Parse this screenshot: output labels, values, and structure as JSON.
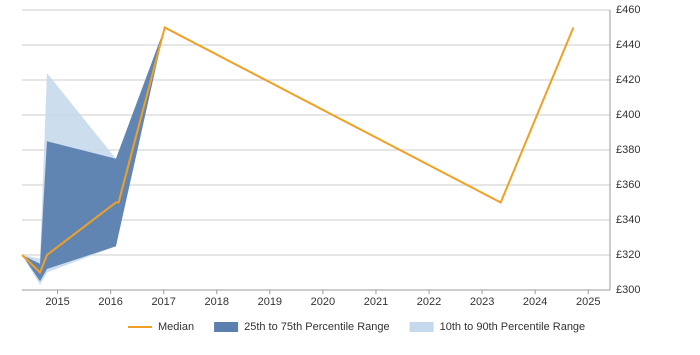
{
  "chart_data": {
    "type": "line-range",
    "xlim": [
      2014.33,
      2025.41
    ],
    "xticks": [
      2015,
      2016,
      2017,
      2018,
      2019,
      2020,
      2021,
      2022,
      2023,
      2024,
      2025
    ],
    "ylim": [
      300,
      460
    ],
    "yticks": [
      {
        "value": 300,
        "label": "£300"
      },
      {
        "value": 320,
        "label": "£320"
      },
      {
        "value": 340,
        "label": "£340"
      },
      {
        "value": 360,
        "label": "£360"
      },
      {
        "value": 380,
        "label": "£380"
      },
      {
        "value": 400,
        "label": "£400"
      },
      {
        "value": 420,
        "label": "£420"
      },
      {
        "value": 440,
        "label": "£440"
      },
      {
        "value": 460,
        "label": "£460"
      }
    ],
    "grid": true,
    "ranges": [
      {
        "name": "10th to 90th Percentile Range",
        "color": "#c6d9ec",
        "x": [
          2014.33,
          2014.67,
          2014.8,
          2016.1,
          2017.02
        ],
        "low": [
          320,
          303,
          310,
          325,
          450
        ],
        "high": [
          320,
          318,
          424,
          375,
          450
        ]
      },
      {
        "name": "25th to 75th Percentile Range",
        "color": "#5b7faf",
        "x": [
          2014.33,
          2014.67,
          2014.8,
          2016.1,
          2017.02
        ],
        "low": [
          320,
          305,
          312,
          325,
          450
        ],
        "high": [
          320,
          315,
          385,
          375,
          450
        ]
      }
    ],
    "series": [
      {
        "name": "Median",
        "color": "#f0a024",
        "x": [
          2014.33,
          2014.67,
          2014.8,
          2016.1,
          2016.15,
          2017.02,
          2023.35,
          2024.72
        ],
        "values": [
          320,
          310,
          320,
          350,
          350,
          450,
          350,
          450
        ]
      }
    ]
  }
}
